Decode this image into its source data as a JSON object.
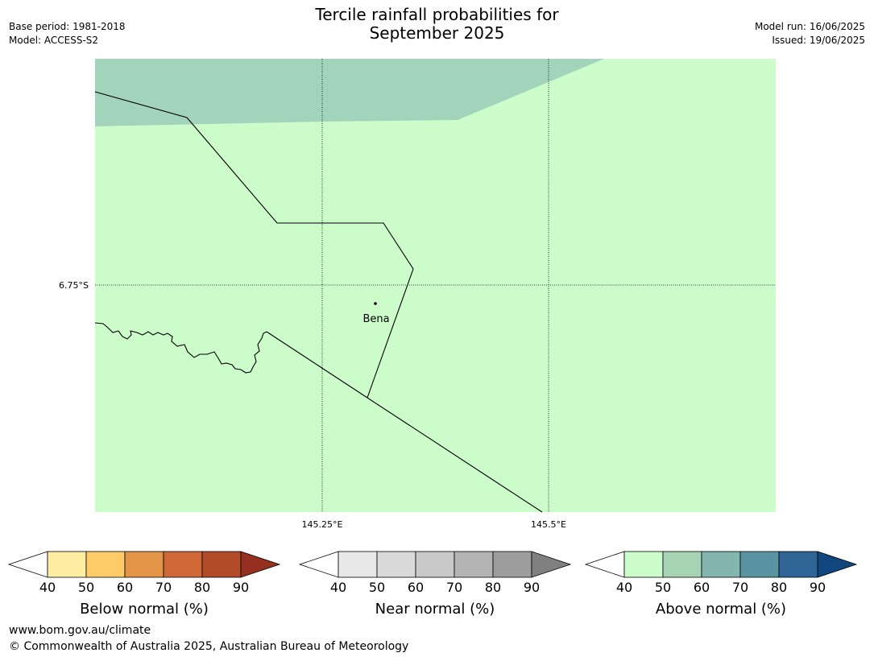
{
  "title": {
    "line1": "Tercile rainfall probabilities for",
    "line2": "September 2025"
  },
  "meta_left": {
    "base_period": "Base period: 1981-2018",
    "model": "Model: ACCESS-S2"
  },
  "meta_right": {
    "model_run": "Model run: 16/06/2025",
    "issued": "Issued: 19/06/2025"
  },
  "map": {
    "lat_label": "6.75°S",
    "lon_labels": [
      "145.25°E",
      "145.5°E"
    ],
    "place": {
      "name": "Bena"
    },
    "colors": {
      "above_40_50": "#ccfcca",
      "above_50_60": "#a2d3bb",
      "boundary": "#000000"
    }
  },
  "colorbars": [
    {
      "label": "Below normal (%)",
      "ticks": [
        "40",
        "50",
        "60",
        "70",
        "80",
        "90"
      ],
      "colors": [
        "#ffeea1",
        "#ffcb69",
        "#e39447",
        "#cf6836",
        "#b14b28",
        "#952f1f"
      ]
    },
    {
      "label": "Near normal (%)",
      "ticks": [
        "40",
        "50",
        "60",
        "70",
        "80",
        "90"
      ],
      "colors": [
        "#e8e8e8",
        "#d9d9d9",
        "#c9c9c9",
        "#b4b4b4",
        "#9d9d9d",
        "#808080"
      ]
    },
    {
      "label": "Above normal (%)",
      "ticks": [
        "40",
        "50",
        "60",
        "70",
        "80",
        "90"
      ],
      "colors": [
        "#ccfcca",
        "#a5d3b4",
        "#83b6ae",
        "#5a93a1",
        "#2f6596",
        "#11467e"
      ]
    }
  ],
  "footer": {
    "url": "www.bom.gov.au/climate",
    "copyright": "© Commonwealth of Australia 2025, Australian Bureau of Meteorology"
  }
}
